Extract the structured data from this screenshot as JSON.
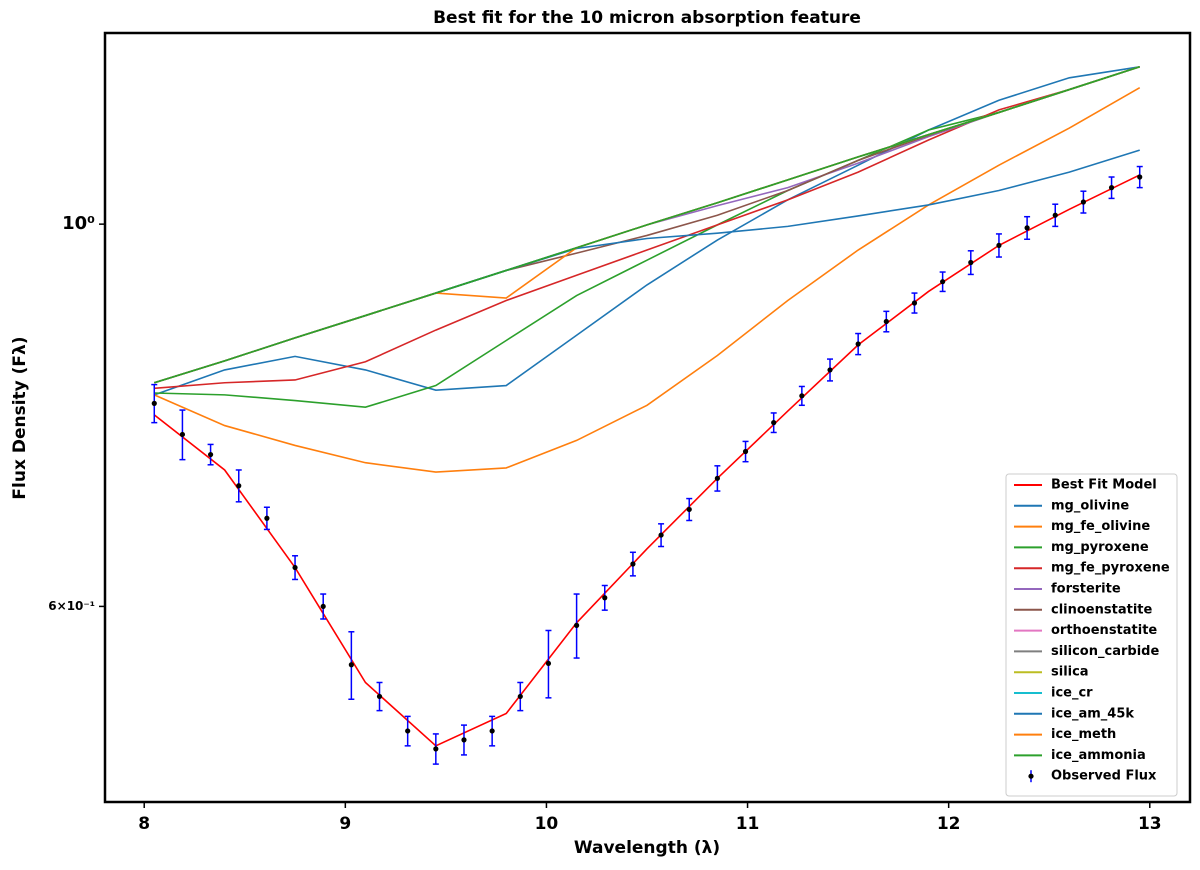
{
  "chart_data": {
    "type": "line",
    "title": "Best fit for the 10 micron absorption feature",
    "xlabel": "Wavelength (λ)",
    "ylabel": "Flux Density (Fλ)",
    "yscale": "log",
    "legend": "lower right",
    "xlim": [
      7.805,
      13.2
    ],
    "ylim": [
      0.462,
      1.291
    ],
    "xticks": [
      8,
      9,
      10,
      11,
      12,
      13
    ],
    "yticks": [
      {
        "value": 1,
        "label": "10⁰"
      },
      {
        "value": 0.6,
        "label": "6×10⁻¹"
      }
    ],
    "x": [
      8.05,
      8.4,
      8.75,
      9.1,
      9.45,
      9.8,
      10.15,
      10.5,
      10.85,
      11.2,
      11.55,
      11.9,
      12.25,
      12.6,
      12.95
    ],
    "series": [
      {
        "name": "Best Fit Model",
        "color": "#ff0000",
        "values": [
          0.775,
          0.72,
          0.632,
          0.542,
          0.498,
          0.52,
          0.587,
          0.648,
          0.712,
          0.779,
          0.851,
          0.914,
          0.972,
          1.02,
          1.068
        ]
      },
      {
        "name": "mg_olivine",
        "color": "#1f77b4",
        "values": [
          0.796,
          0.823,
          0.838,
          0.823,
          0.801,
          0.806,
          0.862,
          0.922,
          0.979,
          1.033,
          1.082,
          1.134,
          1.18,
          1.216,
          1.234
        ]
      },
      {
        "name": "mg_fe_olivine",
        "color": "#ff7f0e",
        "values": [
          0.796,
          0.764,
          0.744,
          0.727,
          0.718,
          0.722,
          0.749,
          0.785,
          0.839,
          0.903,
          0.966,
          1.026,
          1.082,
          1.137,
          1.2
        ]
      },
      {
        "name": "mg_pyroxene",
        "color": "#2ca02c",
        "values": [
          0.798,
          0.796,
          0.79,
          0.783,
          0.806,
          0.856,
          0.909,
          0.953,
          0.999,
          1.046,
          1.089,
          1.134,
          1.161,
          1.197,
          1.234
        ]
      },
      {
        "name": "mg_fe_pyroxene",
        "color": "#d62728",
        "values": [
          0.803,
          0.809,
          0.812,
          0.832,
          0.868,
          0.903,
          0.934,
          0.966,
          0.999,
          1.033,
          1.072,
          1.119,
          1.165,
          1.197,
          1.234
        ]
      },
      {
        "name": "forsterite",
        "color": "#9467bd",
        "values": [
          0.809,
          0.833,
          0.859,
          0.885,
          0.912,
          0.94,
          0.969,
          0.999,
          1.025,
          1.05,
          1.085,
          1.124,
          1.161,
          1.197,
          1.234
        ]
      },
      {
        "name": "clinoenstatite",
        "color": "#8c564b",
        "values": [
          0.809,
          0.833,
          0.859,
          0.885,
          0.912,
          0.94,
          0.962,
          0.985,
          1.012,
          1.046,
          1.089,
          1.126,
          1.161,
          1.197,
          1.234
        ]
      },
      {
        "name": "orthoenstatite",
        "color": "#e377c2",
        "values": [
          0.809,
          0.833,
          0.859,
          0.885,
          0.912,
          0.94,
          0.969,
          0.999,
          1.029,
          1.061,
          1.094,
          1.127,
          1.161,
          1.197,
          1.234
        ]
      },
      {
        "name": "silicon_carbide",
        "color": "#7f7f7f",
        "values": [
          0.809,
          0.833,
          0.859,
          0.885,
          0.912,
          0.94,
          0.969,
          0.999,
          1.029,
          1.061,
          1.094,
          1.127,
          1.161,
          1.197,
          1.234
        ]
      },
      {
        "name": "silica",
        "color": "#bcbd22",
        "values": [
          0.809,
          0.833,
          0.859,
          0.885,
          0.912,
          0.94,
          0.969,
          0.999,
          1.029,
          1.061,
          1.094,
          1.127,
          1.161,
          1.197,
          1.234
        ]
      },
      {
        "name": "ice_cr",
        "color": "#17becf",
        "values": [
          0.809,
          0.833,
          0.859,
          0.885,
          0.912,
          0.94,
          0.969,
          0.999,
          1.029,
          1.061,
          1.094,
          1.127,
          1.161,
          1.197,
          1.234
        ]
      },
      {
        "name": "ice_am_45k",
        "color": "#1f77b4",
        "values": [
          0.809,
          0.833,
          0.859,
          0.885,
          0.912,
          0.94,
          0.968,
          0.981,
          0.988,
          0.997,
          1.011,
          1.026,
          1.046,
          1.072,
          1.104
        ]
      },
      {
        "name": "ice_meth",
        "color": "#ff7f0e",
        "values": [
          0.809,
          0.833,
          0.859,
          0.885,
          0.912,
          0.906,
          0.969,
          0.999,
          1.029,
          1.061,
          1.094,
          1.127,
          1.161,
          1.197,
          1.234
        ]
      },
      {
        "name": "ice_ammonia",
        "color": "#2ca02c",
        "values": [
          0.809,
          0.833,
          0.859,
          0.885,
          0.912,
          0.94,
          0.969,
          0.999,
          1.029,
          1.061,
          1.094,
          1.127,
          1.161,
          1.197,
          1.234
        ]
      },
      {
        "name": "Observed Flux",
        "type": "errorbar",
        "color": "#000000",
        "ecolor": "#0000ff",
        "x": [
          8.05,
          8.19,
          8.33,
          8.47,
          8.61,
          8.75,
          8.89,
          9.03,
          9.17,
          9.31,
          9.45,
          9.59,
          9.73,
          9.87,
          10.01,
          10.15,
          10.29,
          10.43,
          10.57,
          10.71,
          10.85,
          10.99,
          11.13,
          11.27,
          11.41,
          11.55,
          11.69,
          11.83,
          11.97,
          12.11,
          12.25,
          12.39,
          12.53,
          12.67,
          12.81,
          12.95
        ],
        "values": [
          0.787,
          0.755,
          0.735,
          0.705,
          0.675,
          0.632,
          0.6,
          0.555,
          0.532,
          0.508,
          0.496,
          0.502,
          0.508,
          0.532,
          0.556,
          0.585,
          0.607,
          0.635,
          0.66,
          0.683,
          0.712,
          0.738,
          0.767,
          0.795,
          0.823,
          0.852,
          0.878,
          0.9,
          0.926,
          0.95,
          0.972,
          0.995,
          1.012,
          1.03,
          1.05,
          1.065
        ],
        "errors": [
          0.02,
          0.025,
          0.01,
          0.015,
          0.01,
          0.01,
          0.01,
          0.025,
          0.01,
          0.01,
          0.01,
          0.01,
          0.01,
          0.01,
          0.025,
          0.025,
          0.01,
          0.01,
          0.01,
          0.01,
          0.012,
          0.01,
          0.01,
          0.01,
          0.012,
          0.012,
          0.012,
          0.012,
          0.012,
          0.015,
          0.015,
          0.015,
          0.015,
          0.015,
          0.015,
          0.015
        ]
      }
    ]
  }
}
